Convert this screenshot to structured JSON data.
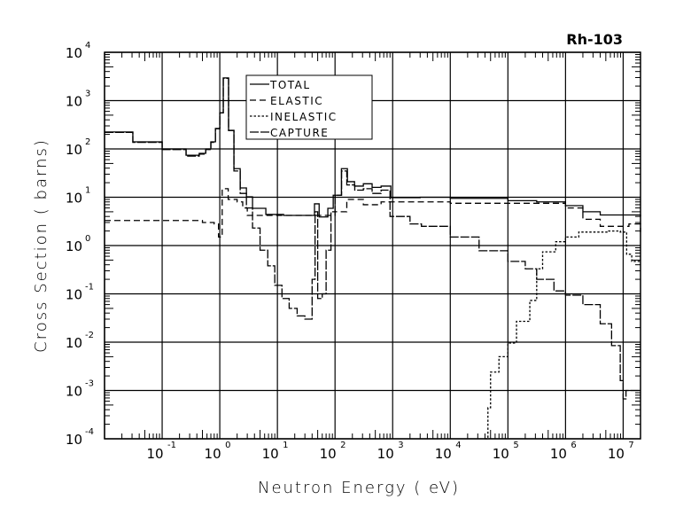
{
  "chart_data": {
    "type": "line",
    "title": "Rh-103",
    "xlabel": "Neutron Energy ( eV)",
    "ylabel": "Cross Section ( barns)",
    "xscale": "log",
    "yscale": "log",
    "xlim": [
      0.01,
      20000000
    ],
    "ylim": [
      0.0001,
      10000
    ],
    "grid": true,
    "legend_position": "top-center",
    "x_ticks": [
      {
        "base": "10",
        "exp": "-1",
        "value": 0.1
      },
      {
        "base": "10",
        "exp": "0",
        "value": 1
      },
      {
        "base": "10",
        "exp": "1",
        "value": 10
      },
      {
        "base": "10",
        "exp": "2",
        "value": 100
      },
      {
        "base": "10",
        "exp": "3",
        "value": 1000
      },
      {
        "base": "10",
        "exp": "4",
        "value": 10000
      },
      {
        "base": "10",
        "exp": "5",
        "value": 100000
      },
      {
        "base": "10",
        "exp": "6",
        "value": 1000000
      },
      {
        "base": "10",
        "exp": "7",
        "value": 10000000
      }
    ],
    "y_ticks": [
      {
        "base": "10",
        "exp": "-4",
        "value": 0.0001
      },
      {
        "base": "10",
        "exp": "-3",
        "value": 0.001
      },
      {
        "base": "10",
        "exp": "-2",
        "value": 0.01
      },
      {
        "base": "10",
        "exp": "-1",
        "value": 0.1
      },
      {
        "base": "10",
        "exp": "0",
        "value": 1
      },
      {
        "base": "10",
        "exp": "1",
        "value": 10
      },
      {
        "base": "10",
        "exp": "2",
        "value": 100
      },
      {
        "base": "10",
        "exp": "3",
        "value": 1000
      },
      {
        "base": "10",
        "exp": "4",
        "value": 10000
      }
    ],
    "series": [
      {
        "name": "TOTAL",
        "style": "solid",
        "color": "#000000",
        "x": [
          0.01,
          0.031,
          0.1,
          0.26,
          0.44,
          0.57,
          0.7,
          0.84,
          1.0,
          1.15,
          1.42,
          1.76,
          2.26,
          2.9,
          3.7,
          6.3,
          12.8,
          37,
          44,
          53,
          75,
          93,
          129,
          164,
          218,
          310,
          440,
          630,
          930,
          3000,
          10000,
          100000,
          316000,
          1000000,
          2000000,
          4000000,
          10000000,
          20000000
        ],
        "y": [
          224,
          140,
          100,
          74,
          81,
          100,
          140,
          265,
          560,
          2950,
          242,
          39,
          15.6,
          10.2,
          5.9,
          4.4,
          4.2,
          4.2,
          7.3,
          3.9,
          5.9,
          11,
          39,
          21,
          17,
          19,
          16,
          17,
          9.8,
          10,
          9.5,
          8.5,
          8,
          6.7,
          5,
          4.3,
          4.3,
          4.0
        ]
      },
      {
        "name": "ELASTIC",
        "style": "dashed",
        "color": "#000000",
        "x": [
          0.01,
          0.09,
          0.5,
          0.8,
          0.95,
          1.1,
          1.4,
          2.0,
          2.5,
          3.0,
          6.3,
          37,
          100,
          160,
          310,
          630,
          1000,
          10000,
          100000,
          316000,
          1000000,
          2000000,
          4000000,
          10000000,
          12600000,
          20000000
        ],
        "y": [
          3.3,
          3.3,
          3.0,
          2.8,
          1.5,
          15,
          9,
          8,
          6,
          4.2,
          4.2,
          4.2,
          5,
          9,
          7,
          8,
          8,
          7.5,
          7.5,
          7.5,
          6.0,
          3.5,
          2.5,
          2.5,
          2.8,
          1.9
        ]
      },
      {
        "name": "INELASTIC",
        "style": "dotted",
        "color": "#000000",
        "x": [
          40000,
          45000,
          50000,
          70000,
          100000,
          141000,
          240000,
          316000,
          400000,
          676000,
          1000000,
          1700000,
          5600000,
          8900000,
          11500000,
          14100000,
          20000000
        ],
        "y": [
          0.0001,
          0.00044,
          0.0024,
          0.005,
          0.0096,
          0.027,
          0.073,
          0.33,
          0.74,
          1.2,
          1.5,
          1.9,
          2.0,
          1.9,
          0.66,
          0.47,
          0.47
        ]
      },
      {
        "name": "CAPTURE",
        "style": "long-dash",
        "color": "#000000",
        "x": [
          0.01,
          0.031,
          0.1,
          0.26,
          0.44,
          0.57,
          0.7,
          0.84,
          1.0,
          1.15,
          1.42,
          1.76,
          2.26,
          2.9,
          3.7,
          5,
          6.8,
          9,
          12,
          16,
          22,
          30,
          40,
          45,
          50,
          60,
          70,
          85,
          100,
          130,
          160,
          220,
          310,
          440,
          630,
          900,
          2000,
          3160,
          10000,
          31600,
          100000,
          200000,
          316000,
          630000,
          1000000,
          2000000,
          4000000,
          6300000,
          8900000,
          10000000,
          11200000,
          20000000
        ],
        "y": [
          220,
          137,
          97,
          71,
          78,
          97,
          137,
          262,
          557,
          2900,
          240,
          35,
          12,
          6,
          2.3,
          0.8,
          0.38,
          0.15,
          0.08,
          0.05,
          0.035,
          0.03,
          0.2,
          5,
          0.08,
          0.1,
          0.8,
          5,
          11,
          35,
          18,
          14,
          15,
          12,
          14,
          4,
          2.8,
          2.5,
          1.5,
          0.78,
          0.47,
          0.33,
          0.2,
          0.115,
          0.094,
          0.06,
          0.024,
          0.0085,
          0.0016,
          0.00067,
          0.001,
          0.001
        ]
      }
    ]
  }
}
